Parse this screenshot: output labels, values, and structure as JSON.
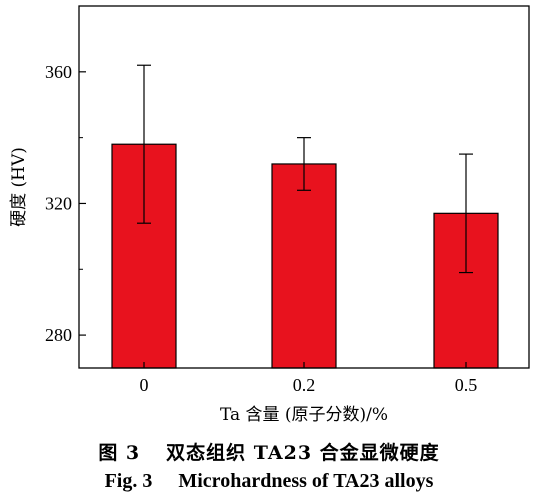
{
  "chart_data": {
    "type": "bar",
    "categories": [
      "0",
      "0.2",
      "0.5"
    ],
    "values": [
      338,
      332,
      317
    ],
    "errors": [
      24,
      8,
      18
    ],
    "bar_color": "#e8121e",
    "bar_edge_color": "#000000",
    "xlabel": "Ta 含量 (原子分数)/%",
    "ylabel": "硬度 (HV)",
    "ylim": [
      270,
      380
    ],
    "yticks": [
      280,
      320,
      360
    ],
    "grid": false,
    "legend": "none"
  },
  "caption": {
    "cn_number": "图 3",
    "cn_title": "双态组织 TA23 合金显微硬度",
    "en_number": "Fig. 3",
    "en_title": "Microhardness of TA23 alloys"
  }
}
